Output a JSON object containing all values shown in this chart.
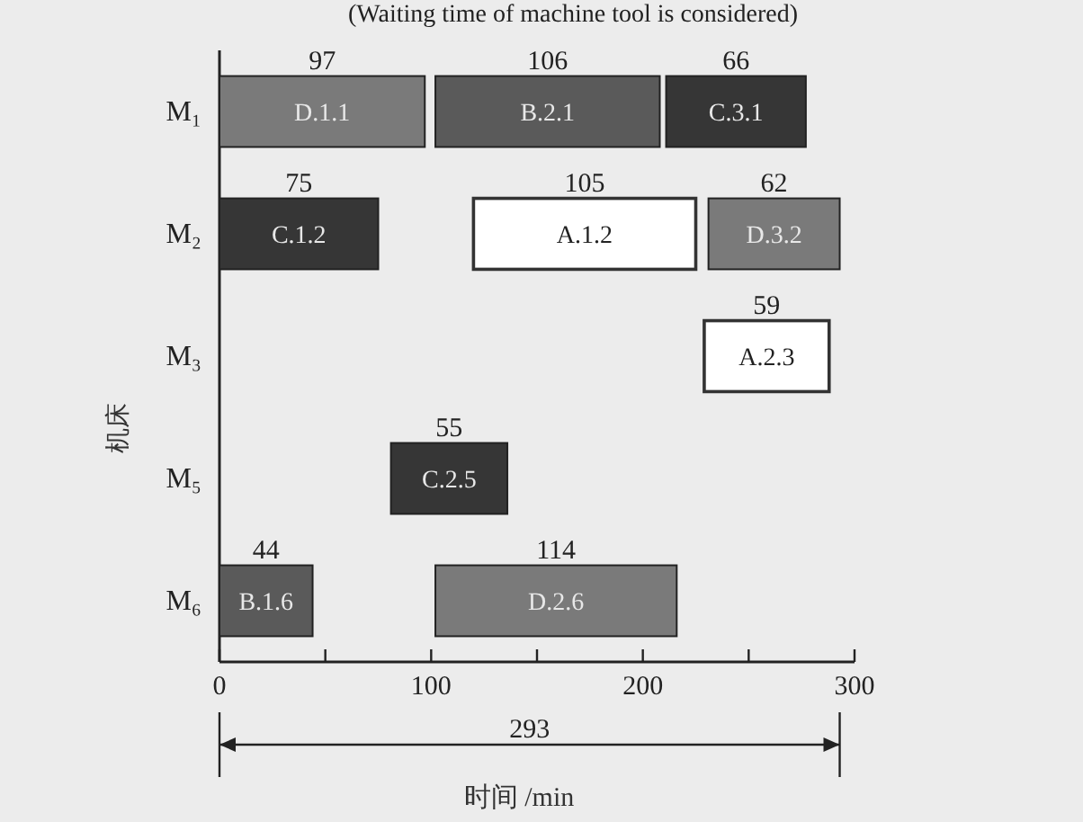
{
  "chart_data": {
    "type": "bar",
    "orientation": "horizontal",
    "title": "(Waiting time of machine tool is considered)",
    "xlabel": "时间 /min",
    "ylabel": "机床",
    "categories": [
      "M₁",
      "M₂",
      "M₃",
      "M₅",
      "M₆"
    ],
    "series": [
      {
        "color": "#7a7a7a",
        "base": [
          0,
          231,
          null,
          null,
          102
        ],
        "values": [
          97,
          62,
          null,
          null,
          114
        ]
      },
      {
        "color": "#5a5a5a",
        "base": [
          102,
          null,
          null,
          null,
          0
        ],
        "values": [
          106,
          null,
          null,
          null,
          44
        ]
      },
      {
        "color": "#363636",
        "base": [
          211,
          0,
          null,
          81,
          null
        ],
        "values": [
          66,
          75,
          null,
          55,
          null
        ]
      },
      {
        "color": "#ffffff",
        "base": [
          null,
          120,
          229,
          null,
          null
        ],
        "values": [
          null,
          105,
          59,
          null,
          null
        ]
      }
    ],
    "data_labels": true,
    "legend": false,
    "grid": false,
    "xlim": [
      0,
      300
    ],
    "xticks": [
      0,
      {
        "value": 50,
        "label": null
      },
      100,
      {
        "value": 150,
        "label": null
      },
      200,
      {
        "value": 250,
        "label": null
      },
      300
    ],
    "annotations": [
      "D.1.1",
      "B.2.1",
      "C.3.1",
      "C.1.2",
      "A.1.2",
      "D.3.2",
      "A.2.3",
      "C.2.5",
      "B.1.6",
      "D.2.6",
      "293"
    ]
  }
}
